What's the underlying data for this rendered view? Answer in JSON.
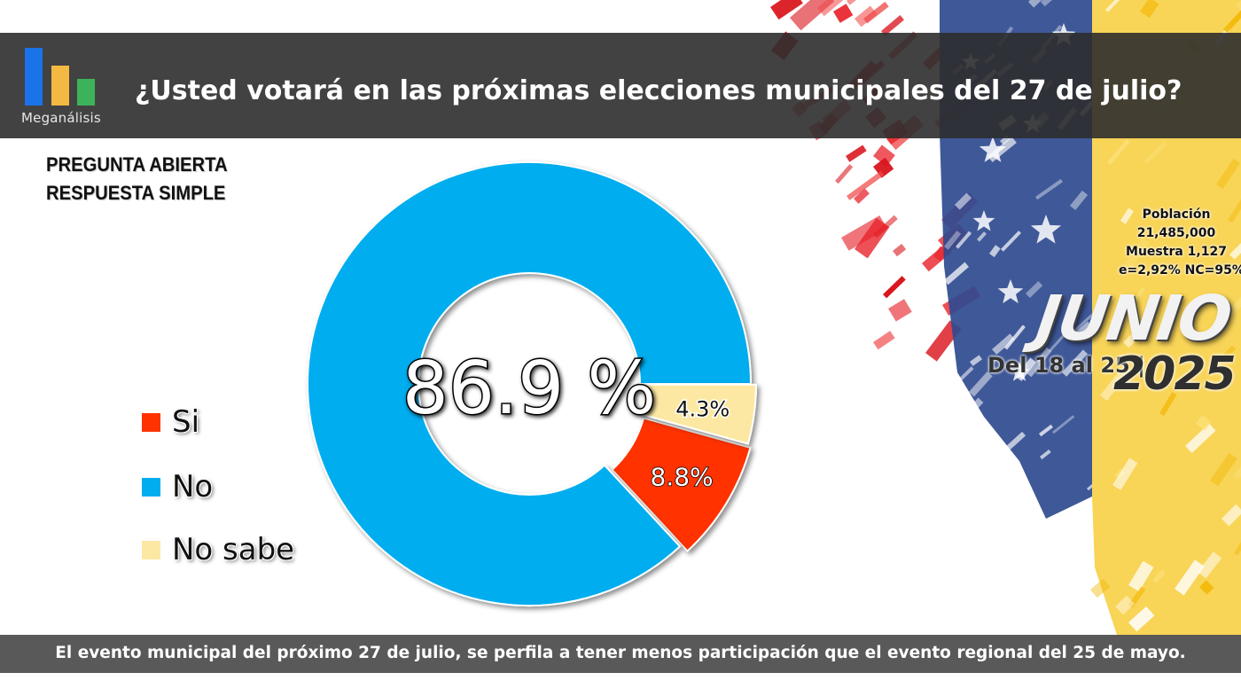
{
  "header": {
    "brand": "Meganálisis",
    "title": "¿Usted votará en las próximas elecciones municipales del 27 de julio?"
  },
  "subtitle": {
    "line1": "PREGUNTA  ABIERTA",
    "line2": "RESPUESTA SIMPLE"
  },
  "chart_data": {
    "type": "pie",
    "donut": true,
    "categories": [
      "Si",
      "No",
      "No sabe"
    ],
    "values": [
      8.8,
      86.9,
      4.3
    ],
    "labels": [
      "8.8%",
      "86.9 %",
      "4.3%"
    ],
    "colors": [
      "#ff3300",
      "#00adef",
      "#fde8a3"
    ],
    "center_label": "86.9 %",
    "legend_position": "left"
  },
  "info": {
    "line1": "Población",
    "line2": "21,485,000",
    "line3": "Muestra 1,127",
    "line4": "e=2,92%  NC=95%"
  },
  "period": {
    "month": "JUNIO",
    "range": "Del 18 al 25 |",
    "year": "2025"
  },
  "footer": "El evento municipal del próximo 27 de julio, se perfila a tener menos participación que el evento regional del 25 de mayo.",
  "logo_colors": [
    "#1a73e8",
    "#f4b942",
    "#3cb35b"
  ]
}
